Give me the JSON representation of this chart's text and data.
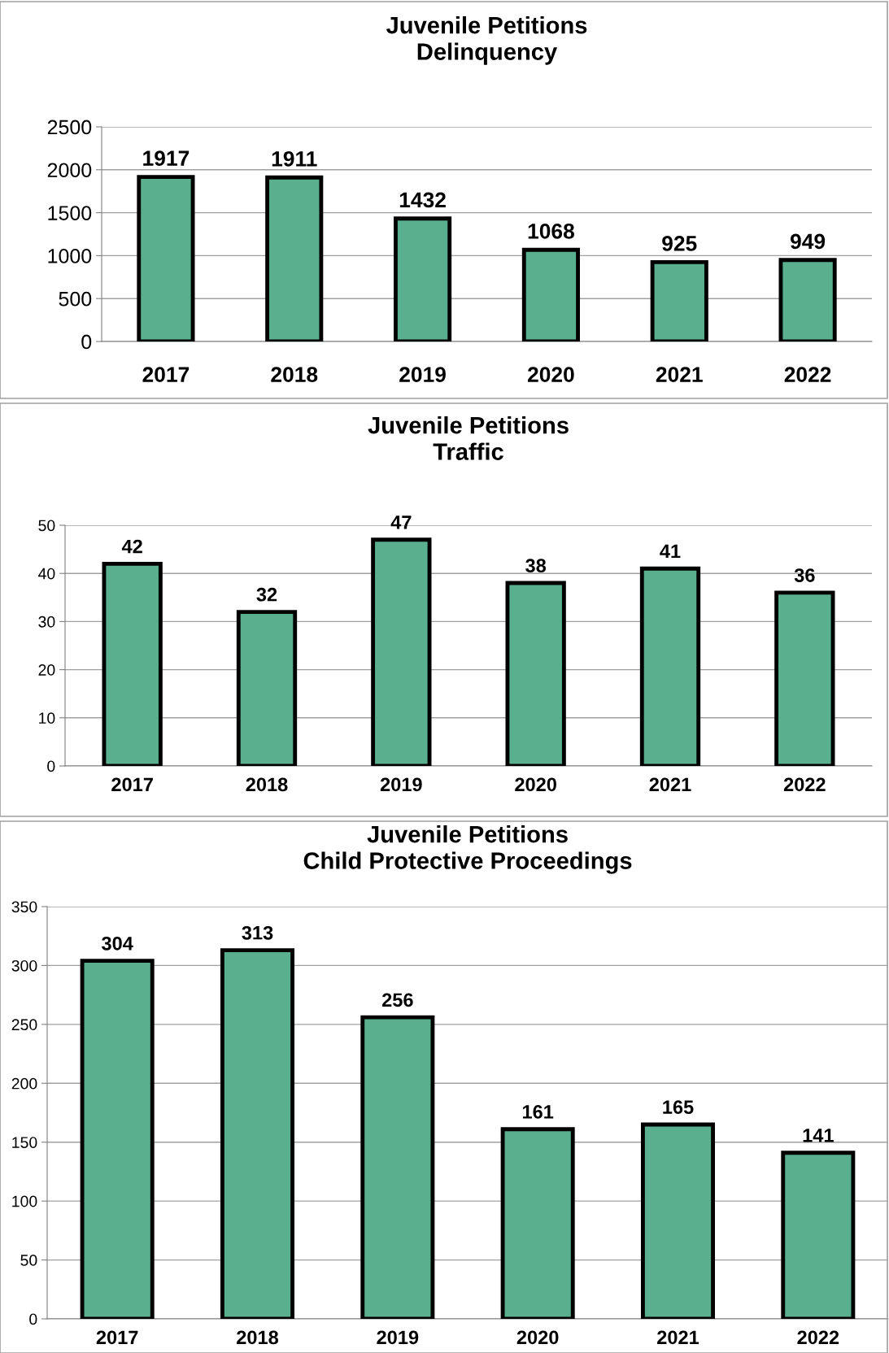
{
  "chart_data": [
    {
      "type": "bar",
      "title": "Juvenile Petitions\nDelinquency",
      "categories": [
        "2017",
        "2018",
        "2019",
        "2020",
        "2021",
        "2022"
      ],
      "values": [
        1917,
        1911,
        1432,
        1068,
        925,
        949
      ],
      "color": "#5aaf8f",
      "ylim": [
        0,
        2500
      ],
      "yticks": [
        0,
        500,
        1000,
        1500,
        2000,
        2500
      ],
      "grid": "y",
      "data_labels": true
    },
    {
      "type": "bar",
      "title": "Juvenile Petitions\nTraffic",
      "categories": [
        "2017",
        "2018",
        "2019",
        "2020",
        "2021",
        "2022"
      ],
      "values": [
        42,
        32,
        47,
        38,
        41,
        36
      ],
      "color": "#5aaf8f",
      "ylim": [
        0,
        50
      ],
      "yticks": [
        0,
        10,
        20,
        30,
        40,
        50
      ],
      "grid": "y",
      "data_labels": true
    },
    {
      "type": "bar",
      "title": "Juvenile Petitions\nChild Protective Proceedings",
      "categories": [
        "2017",
        "2018",
        "2019",
        "2020",
        "2021",
        "2022"
      ],
      "values": [
        304,
        313,
        256,
        161,
        165,
        141
      ],
      "color": "#5aaf8f",
      "ylim": [
        0,
        350
      ],
      "yticks": [
        0,
        50,
        100,
        150,
        200,
        250,
        300,
        350
      ],
      "grid": "y",
      "data_labels": true
    }
  ]
}
